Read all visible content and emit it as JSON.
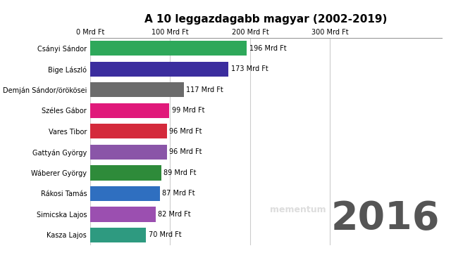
{
  "chart_data": {
    "type": "bar",
    "orientation": "horizontal",
    "title": "A 10 leggazdagabb magyar (2002-2019)",
    "categories": [
      "Csányi Sándor",
      "Bige László",
      "Demján Sándor/örökösei",
      "Széles Gábor",
      "Vares Tibor",
      "Gattyán György",
      "Wáberer György",
      "Rákosi Tamás",
      "Simicska Lajos",
      "Kasza Lajos"
    ],
    "values": [
      196,
      173,
      117,
      99,
      96,
      96,
      89,
      87,
      82,
      70
    ],
    "value_labels": [
      "196 Mrd Ft",
      "173 Mrd Ft",
      "117 Mrd Ft",
      "99 Mrd Ft",
      "96 Mrd Ft",
      "96 Mrd Ft",
      "89 Mrd Ft",
      "87 Mrd Ft",
      "82 Mrd Ft",
      "70 Mrd Ft"
    ],
    "colors": [
      "#2ea85a",
      "#3b2d9e",
      "#6b6b6b",
      "#e0197a",
      "#d42a3c",
      "#8a55a8",
      "#2e8b3a",
      "#2f6fc0",
      "#9b4fb0",
      "#2e9a80"
    ],
    "data_labels": true,
    "xlim": [
      0,
      440
    ],
    "xticks": [
      {
        "value": 0,
        "label": "0 Mrd Ft"
      },
      {
        "value": 100,
        "label": "100 Mrd Ft"
      },
      {
        "value": 200,
        "label": "200 Mrd Ft"
      },
      {
        "value": 300,
        "label": "300 Mrd Ft"
      }
    ],
    "grid": true,
    "annotations": [
      "2016",
      "mementum"
    ]
  }
}
